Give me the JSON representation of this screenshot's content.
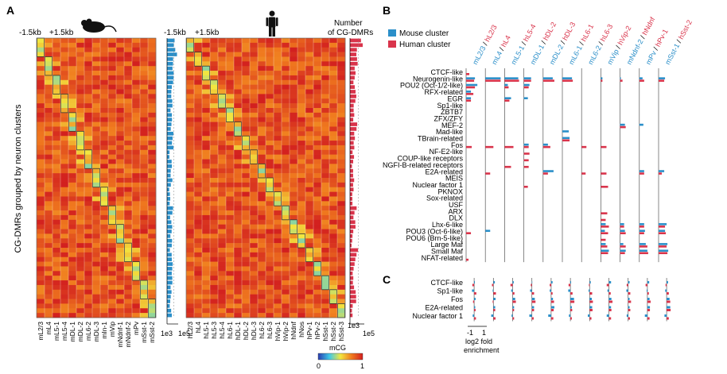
{
  "panel_a": {
    "letter": "A",
    "flank_left": "-1.5kb",
    "flank_right": "+1.5kb",
    "y_label": "CG-DMRs grouped by neuron clusters",
    "count_title_line1": "Number",
    "count_title_line2": "of CG-DMRs",
    "colorbar_title": "mCG",
    "colorbar_min": "0",
    "colorbar_max": "1",
    "count_axis_mouse": "1e3",
    "count_axis_mouse_human": "1e5",
    "count_axis_human_left": "1e3",
    "count_axis_human": "1e5"
  },
  "panel_b": {
    "letter": "B",
    "legend": [
      "Mouse cluster",
      "Human cluster"
    ],
    "colors": {
      "mouse": "#2b8fc9",
      "human": "#d9344b"
    },
    "x_tick_min": "-1",
    "x_tick_max": "1",
    "x_label_line1": "log2 fold",
    "x_label_line2": "enrichment"
  },
  "panel_c": {
    "letter": "C"
  },
  "chart_data": [
    {
      "type": "heatmap",
      "title": "",
      "ylabel": "CG-DMRs grouped by neuron clusters",
      "colorbar": {
        "label": "mCG",
        "range": [
          0,
          1
        ],
        "colors": [
          "#2a3cb0",
          "#3ec8e8",
          "#f2e640",
          "#f07a1e",
          "#d21f1f"
        ]
      },
      "mouse": {
        "columns": [
          "mL2/3",
          "mL4",
          "mL5-1",
          "mL5-4",
          "mDL-1",
          "mDL-2",
          "mL6-2",
          "mDL-3",
          "mIn-1",
          "mVip",
          "mNdnf-1",
          "mNdnf-2",
          "mPv",
          "mSst-1",
          "mSst-2"
        ],
        "dmr_counts": [
          1500,
          900,
          1200,
          800,
          1100,
          950,
          700,
          1000,
          600,
          900,
          700,
          650,
          1100,
          900,
          800
        ]
      },
      "human": {
        "columns": [
          "hL2/3",
          "hL4",
          "hL5-1",
          "hL5-3",
          "hL5-4",
          "hL6-1",
          "hDL-1",
          "hDL-2",
          "hDL-3",
          "hL6-2",
          "hL6-3",
          "hVip-1",
          "hVip-2",
          "hNdnf",
          "hNos",
          "hPv-1",
          "hPv-2",
          "hSst-1",
          "hSst-2",
          "hSst-3"
        ],
        "dmr_counts": [
          15000,
          9000,
          8000,
          6000,
          7000,
          5000,
          9000,
          6000,
          5500,
          4000,
          7000,
          5000,
          8000,
          6000,
          3000,
          9000,
          6000,
          5000,
          7000,
          3000
        ]
      }
    },
    {
      "type": "bar",
      "title": "",
      "xlabel": "log2 fold enrichment",
      "xlim": [
        -1,
        1
      ],
      "cluster_pairs": [
        {
          "mouse": "mL2/3",
          "human": "hL2/3"
        },
        {
          "mouse": "mL4",
          "human": "hL4"
        },
        {
          "mouse": "mL5-1",
          "human": "hL5-4"
        },
        {
          "mouse": "mDL-1",
          "human": "hDL-2"
        },
        {
          "mouse": "mDL-2",
          "human": "hDL-3"
        },
        {
          "mouse": "mL6-1",
          "human": "hL6-1"
        },
        {
          "mouse": "mL6-2",
          "human": "hL6-3"
        },
        {
          "mouse": "mVip",
          "human": "hVip-2"
        },
        {
          "mouse": "mNdnf-2",
          "human": "hNdnf"
        },
        {
          "mouse": "mPv",
          "human": "hPv-1"
        },
        {
          "mouse": "mSst-1",
          "human": "hSst-2"
        }
      ],
      "motifs": [
        "CTCF-like",
        "Neurogenin-like",
        "POU2 (Oct-1/2-like)",
        "RFX-related",
        "EGR",
        "Sp1-like",
        "ZBTB7",
        "ZFX/ZFY",
        "MEF-2",
        "Mad-like",
        "TBrain-related",
        "Fos",
        "NF-E2-like",
        "COUP-like receptors",
        "NGFI-B-related receptors",
        "E2A-related",
        "MEIS",
        "Nuclear factor 1",
        "PKNOX",
        "Sox-related",
        "USF",
        "ARX",
        "DLX",
        "Lhx-6-like",
        "POU3 (Oct-6-like)",
        "POU6 (Brn-5-like)",
        "Large Maf",
        "Small Maf",
        "NFAT-related"
      ],
      "series": [
        {
          "name": "Mouse cluster",
          "values": [
            [
              0,
              0.55,
              0.7,
              0.3,
              0.3,
              0,
              0,
              0,
              0,
              0,
              0,
              0,
              0,
              0,
              0,
              0,
              0,
              0,
              0,
              0,
              0,
              0,
              0,
              0,
              0,
              0,
              0,
              0,
              0
            ],
            [
              0,
              0.95,
              0,
              0,
              0,
              0,
              0,
              0,
              0,
              0,
              0,
              0,
              0,
              0,
              0,
              0,
              0,
              0,
              0,
              0,
              0,
              0,
              0,
              0,
              0.3,
              0,
              0,
              0,
              0
            ],
            [
              0,
              0.85,
              0.2,
              0,
              0.4,
              0,
              0,
              0,
              0,
              0,
              0,
              0,
              0,
              0,
              0,
              0,
              0,
              0,
              0,
              0,
              0,
              0,
              0,
              0,
              0,
              0,
              0,
              0,
              0
            ],
            [
              0,
              0.45,
              0.35,
              0,
              0.25,
              0,
              0,
              0,
              0,
              0,
              0,
              0.3,
              0,
              0,
              0,
              0,
              0,
              0,
              0,
              0,
              0,
              0,
              0,
              0,
              0,
              0,
              0,
              0,
              0
            ],
            [
              0,
              0.6,
              0,
              0,
              0,
              0,
              0,
              0,
              0,
              0,
              0,
              0.3,
              0,
              0,
              0,
              0.65,
              0,
              0,
              0,
              0,
              0,
              0,
              0,
              0,
              0,
              0,
              0,
              0,
              0
            ],
            [
              0,
              0.6,
              0,
              0,
              0,
              0,
              0,
              0,
              0,
              0.4,
              0.45,
              0,
              0,
              0,
              0,
              0,
              0,
              0,
              0,
              0,
              0,
              0,
              0,
              0,
              0,
              0,
              0,
              0,
              0
            ],
            [
              0,
              0,
              0,
              0,
              0,
              0,
              0,
              0,
              0,
              0,
              0,
              0,
              0,
              0,
              0,
              0,
              0,
              0,
              0,
              0,
              0,
              0,
              0,
              0,
              0,
              0,
              0,
              0,
              0
            ],
            [
              0,
              0.1,
              0,
              0,
              0,
              0,
              0,
              0,
              0,
              0,
              0,
              0,
              0,
              0,
              0,
              0,
              0,
              0,
              0,
              0,
              0,
              0,
              0,
              0.3,
              0.25,
              0,
              0.3,
              0.5,
              0
            ],
            [
              0,
              0.05,
              0,
              0,
              0,
              0,
              0,
              0,
              0.3,
              0,
              0,
              0,
              0,
              0,
              0,
              0,
              0,
              0,
              0,
              0,
              0,
              0,
              0,
              0.25,
              0.3,
              0,
              0.2,
              0.35,
              0
            ],
            [
              0,
              0.2,
              0,
              0,
              0,
              0,
              0,
              0,
              0.25,
              0,
              0,
              0,
              0,
              0,
              0,
              0.3,
              0,
              0,
              0,
              0,
              0,
              0,
              0,
              0.3,
              0.35,
              0,
              0.4,
              0.5,
              0
            ],
            [
              0,
              0.4,
              0,
              0,
              0,
              0,
              0,
              0,
              0,
              0,
              0,
              0,
              0,
              0,
              0,
              0.35,
              0,
              0,
              0,
              0,
              0,
              0,
              0,
              0.5,
              0.4,
              0,
              0.55,
              0.6,
              0
            ]
          ]
        },
        {
          "name": "Human cluster",
          "values": [
            [
              0.2,
              0.5,
              0.55,
              0.45,
              0.3,
              0,
              0,
              0,
              0,
              0,
              0,
              0.35,
              0,
              0,
              0,
              0,
              0,
              0,
              0,
              0,
              0,
              0,
              0,
              0,
              0.3,
              0,
              0,
              0,
              0.15
            ],
            [
              0,
              0.95,
              0,
              0,
              0,
              0,
              0,
              0,
              0,
              0,
              0,
              0.5,
              0,
              0,
              0,
              0.3,
              0,
              0,
              0,
              0,
              0,
              0,
              0,
              0,
              0,
              0,
              0,
              0,
              0
            ],
            [
              0,
              0.9,
              0.25,
              0,
              0.3,
              0,
              0,
              0,
              0,
              0,
              0,
              0.55,
              0,
              0,
              0.4,
              0,
              0,
              0,
              0,
              0,
              0,
              0,
              0,
              0,
              0,
              0,
              0,
              0,
              0
            ],
            [
              0,
              0.45,
              0.3,
              0,
              0,
              0,
              0,
              0,
              0,
              0,
              0,
              0.3,
              0.35,
              0.3,
              0.3,
              0,
              0,
              0.25,
              0,
              0,
              0,
              0,
              0,
              0,
              0,
              0,
              0,
              0,
              0
            ],
            [
              0,
              0.7,
              0,
              0,
              0,
              0,
              0,
              0,
              0,
              0,
              0,
              0.45,
              0,
              0,
              0,
              0.3,
              0,
              0,
              0,
              0,
              0,
              0,
              0,
              0,
              0,
              0,
              0,
              0,
              0
            ],
            [
              0,
              0.65,
              0,
              0,
              0,
              0,
              0,
              0,
              0,
              0,
              0.45,
              0,
              0,
              0,
              0,
              0,
              0,
              0,
              0,
              0,
              0,
              0,
              0,
              0,
              0,
              0,
              0,
              0,
              0
            ],
            [
              0,
              0,
              0,
              0,
              0,
              0,
              0,
              0,
              0,
              0,
              0,
              0.3,
              0,
              0,
              0,
              0.25,
              0,
              0,
              0,
              0,
              0,
              0,
              0,
              0,
              0,
              0,
              0,
              0,
              0
            ],
            [
              0,
              0.1,
              0,
              0,
              0,
              0,
              0,
              0,
              0,
              0,
              0,
              0.35,
              0,
              0,
              0,
              0.35,
              0,
              0.45,
              0,
              0,
              0,
              0.4,
              0.3,
              0.5,
              0.45,
              0.3,
              0.4,
              0.45,
              0
            ],
            [
              0,
              0.15,
              0,
              0,
              0,
              0,
              0,
              0,
              0.35,
              0,
              0,
              0,
              0,
              0,
              0,
              0,
              0,
              0,
              0,
              0,
              0,
              0,
              0,
              0.25,
              0.35,
              0,
              0.35,
              0.3,
              0
            ],
            [
              0,
              0.3,
              0,
              0,
              0,
              0,
              0,
              0,
              0,
              0,
              0,
              0,
              0,
              0,
              0,
              0.3,
              0,
              0,
              0,
              0,
              0,
              0,
              0,
              0.3,
              0.3,
              0,
              0.5,
              0.55,
              0
            ],
            [
              0,
              0.35,
              0,
              0,
              0,
              0,
              0,
              0,
              0,
              0,
              0,
              0,
              0,
              0,
              0,
              0.2,
              0,
              0,
              0,
              0,
              0,
              0,
              0,
              0.4,
              0.45,
              0,
              0.5,
              0.55,
              0
            ]
          ]
        }
      ]
    },
    {
      "type": "bar",
      "title": "",
      "xlabel": "log2 fold enrichment",
      "xlim": [
        -1,
        1
      ],
      "motifs": [
        "CTCF-like",
        "Sp1-like",
        "Fos",
        "E2A-related",
        "Nuclear factor 1"
      ],
      "series": [
        {
          "name": "Mouse cluster",
          "values": [
            [
              0.1,
              -0.3,
              0.2,
              0.15,
              -0.2
            ],
            [
              0.2,
              -0.1,
              0.3,
              0.25,
              -0.3
            ],
            [
              0.15,
              -0.2,
              0.35,
              0.2,
              -0.15
            ],
            [
              0.05,
              -0.25,
              0.4,
              0.3,
              -0.35
            ],
            [
              0.2,
              -0.2,
              0.25,
              0.45,
              -0.4
            ],
            [
              0.1,
              -0.3,
              0.5,
              0.2,
              -0.2
            ],
            [
              0.15,
              -0.15,
              0.3,
              0.35,
              -0.25
            ],
            [
              0.3,
              -0.2,
              0.35,
              0.3,
              -0.3
            ],
            [
              0.2,
              -0.25,
              0.2,
              0.2,
              -0.2
            ],
            [
              0.25,
              -0.1,
              0.3,
              0.35,
              -0.35
            ],
            [
              0.2,
              -0.2,
              0.4,
              0.5,
              -0.3
            ]
          ]
        },
        {
          "name": "Human cluster",
          "values": [
            [
              -0.25,
              0.3,
              -0.15,
              0.2,
              0.25
            ],
            [
              -0.2,
              0.35,
              -0.1,
              0.25,
              0.3
            ],
            [
              -0.3,
              0.25,
              0.45,
              0.2,
              0.2
            ],
            [
              -0.15,
              0.3,
              0.5,
              0.3,
              0.25
            ],
            [
              -0.2,
              0.2,
              0.4,
              0.35,
              0.3
            ],
            [
              -0.25,
              0.3,
              0.55,
              0.25,
              0.2
            ],
            [
              -0.1,
              0.35,
              0.45,
              0.4,
              0.25
            ],
            [
              -0.3,
              0.25,
              0.5,
              0.35,
              0.3
            ],
            [
              -0.2,
              0.3,
              0.4,
              0.3,
              0.25
            ],
            [
              -0.25,
              0.2,
              0.45,
              0.35,
              0.3
            ],
            [
              -0.15,
              0.3,
              0.5,
              0.55,
              0.3
            ]
          ]
        }
      ]
    }
  ]
}
